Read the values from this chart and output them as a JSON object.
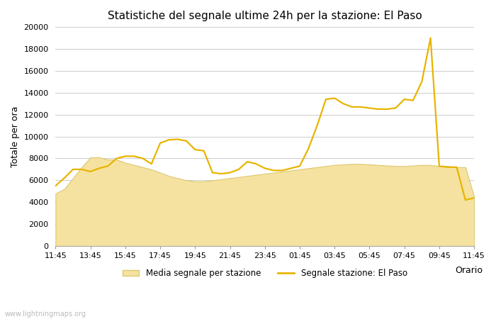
{
  "title": "Statistiche del segnale ultime 24h per la stazione: El Paso",
  "xlabel": "Orario",
  "ylabel": "Totale per ora",
  "watermark": "www.lightningmaps.org",
  "legend_area": "Media segnale per stazione",
  "legend_line": "Segnale stazione: El Paso",
  "x_labels": [
    "11:45",
    "13:45",
    "15:45",
    "17:45",
    "19:45",
    "21:45",
    "23:45",
    "01:45",
    "03:45",
    "05:45",
    "07:45",
    "09:45",
    "11:45"
  ],
  "ylim": [
    0,
    20000
  ],
  "yticks": [
    0,
    2000,
    4000,
    6000,
    8000,
    10000,
    12000,
    14000,
    16000,
    18000,
    20000
  ],
  "area_color": "#f5e2a0",
  "area_edge_color": "#dcc870",
  "line_color": "#e8b400",
  "line_width": 1.6,
  "background_color": "#ffffff",
  "grid_color": "#cccccc",
  "area_x": [
    0,
    1,
    2,
    3,
    4,
    5,
    6,
    7,
    8,
    9,
    10,
    11,
    12,
    13,
    14,
    15,
    16,
    17,
    18,
    19,
    20,
    21,
    22,
    23,
    24,
    25,
    26,
    27,
    28,
    29,
    30,
    31,
    32,
    33,
    34,
    35,
    36,
    37,
    38,
    39,
    40,
    41,
    42,
    43,
    44,
    45,
    46,
    47,
    48
  ],
  "area_y": [
    4800,
    5200,
    6200,
    7200,
    8100,
    8100,
    7900,
    7900,
    7600,
    7400,
    7200,
    7000,
    6700,
    6400,
    6200,
    6000,
    5900,
    5900,
    6000,
    6100,
    6200,
    6300,
    6400,
    6500,
    6600,
    6700,
    6800,
    6900,
    7000,
    7100,
    7200,
    7300,
    7400,
    7450,
    7500,
    7500,
    7450,
    7400,
    7350,
    7300,
    7300,
    7350,
    7400,
    7400,
    7300,
    7300,
    7200,
    7200,
    4500
  ],
  "line_x": [
    0,
    1,
    2,
    3,
    4,
    5,
    6,
    7,
    8,
    9,
    10,
    11,
    12,
    13,
    14,
    15,
    16,
    17,
    18,
    19,
    20,
    21,
    22,
    23,
    24,
    25,
    26,
    27,
    28,
    29,
    30,
    31,
    32,
    33,
    34,
    35,
    36,
    37,
    38,
    39,
    40,
    41,
    42,
    43,
    44,
    45,
    46,
    47,
    48
  ],
  "line_y": [
    5500,
    6200,
    7000,
    7000,
    6800,
    7100,
    7300,
    8000,
    8200,
    8200,
    8000,
    7500,
    9400,
    9700,
    9750,
    9600,
    8800,
    8700,
    6700,
    6600,
    6700,
    7000,
    7700,
    7500,
    7100,
    6900,
    6900,
    7100,
    7300,
    8900,
    11000,
    13400,
    13500,
    13000,
    12700,
    12700,
    12600,
    12500,
    12500,
    12600,
    13400,
    13300,
    15000,
    19000,
    7300,
    7200,
    7200,
    4200,
    4400
  ]
}
